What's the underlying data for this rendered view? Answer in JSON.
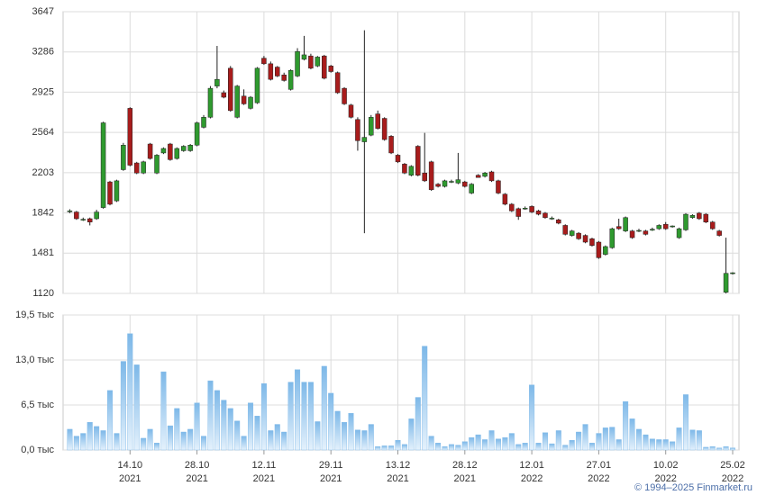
{
  "chart_data": {
    "type": "candlestick",
    "categories": [
      null,
      null,
      null,
      null,
      null,
      null,
      null,
      null,
      null,
      "14.10 2021",
      null,
      null,
      null,
      null,
      null,
      null,
      null,
      null,
      null,
      "28.10 2021",
      null,
      null,
      null,
      null,
      null,
      null,
      null,
      null,
      null,
      "12.11 2021",
      null,
      null,
      null,
      null,
      null,
      null,
      null,
      null,
      null,
      "29.11 2021",
      null,
      null,
      null,
      null,
      null,
      null,
      null,
      null,
      null,
      "13.12 2021",
      null,
      null,
      null,
      null,
      null,
      null,
      null,
      null,
      null,
      "28.12 2021",
      null,
      null,
      null,
      null,
      null,
      null,
      null,
      null,
      null,
      "12.01 2022",
      null,
      null,
      null,
      null,
      null,
      null,
      null,
      null,
      null,
      "27.01 2022",
      null,
      null,
      null,
      null,
      null,
      null,
      null,
      null,
      null,
      "10.02 2022",
      null,
      null,
      null,
      null,
      null,
      null,
      null,
      null,
      null,
      "25.02 2022"
    ],
    "open": [
      1855,
      1850,
      1780,
      1790,
      1790,
      1890,
      2120,
      1950,
      2230,
      2780,
      2290,
      2200,
      2460,
      2200,
      2380,
      2460,
      2330,
      2400,
      2400,
      2450,
      2610,
      2700,
      2980,
      2920,
      3140,
      2700,
      2890,
      2780,
      2830,
      3230,
      3180,
      3150,
      3080,
      2950,
      3070,
      3220,
      3250,
      3160,
      3250,
      3160,
      3100,
      2960,
      2810,
      2680,
      2480,
      2540,
      2730,
      2690,
      2530,
      2360,
      2280,
      2180,
      2440,
      2200,
      2300,
      2100,
      2080,
      2120,
      2110,
      2120,
      2020,
      2180,
      2170,
      2210,
      2130,
      2010,
      1920,
      1880,
      1880,
      1900,
      1860,
      1840,
      1790,
      1780,
      1730,
      1640,
      1660,
      1640,
      1610,
      1580,
      1470,
      1530,
      1720,
      1680,
      1680,
      1680,
      1680,
      1690,
      1700,
      1740,
      1720,
      1620,
      1690,
      1800,
      1840,
      1830,
      1760,
      1680,
      1130,
      1300
    ],
    "high": [
      1875,
      1860,
      1800,
      1800,
      1870,
      2660,
      2130,
      2140,
      2470,
      2790,
      2300,
      2310,
      2470,
      2370,
      2430,
      2470,
      2430,
      2450,
      2460,
      2660,
      2720,
      2980,
      3340,
      2940,
      3160,
      2990,
      2950,
      2890,
      3150,
      3250,
      3200,
      3160,
      3100,
      3130,
      3320,
      3430,
      3270,
      3250,
      3260,
      3170,
      3110,
      2970,
      2820,
      2700,
      3480,
      2720,
      2760,
      2700,
      2540,
      2370,
      2290,
      2270,
      2450,
      2560,
      2310,
      2110,
      2140,
      2140,
      2380,
      2130,
      2110,
      2190,
      2210,
      2220,
      2140,
      2020,
      1930,
      1890,
      1900,
      1910,
      1870,
      1850,
      1810,
      1790,
      1740,
      1690,
      1670,
      1650,
      1620,
      1590,
      1550,
      1710,
      1790,
      1810,
      1690,
      1700,
      1690,
      1710,
      1740,
      1760,
      1730,
      1710,
      1840,
      1830,
      1850,
      1840,
      1770,
      1690,
      1620,
      1310
    ],
    "low": [
      1840,
      1780,
      1770,
      1730,
      1780,
      1880,
      1910,
      1940,
      2220,
      2260,
      2190,
      2190,
      2320,
      2190,
      2370,
      2310,
      2320,
      2390,
      2390,
      2440,
      2600,
      2690,
      2960,
      2870,
      2750,
      2690,
      2810,
      2770,
      2820,
      3170,
      3030,
      3060,
      3020,
      2940,
      3060,
      3210,
      3130,
      3150,
      3040,
      3100,
      2910,
      2810,
      2690,
      2400,
      1660,
      2530,
      2590,
      2490,
      2370,
      2290,
      2190,
      2170,
      2170,
      2120,
      2040,
      2070,
      2070,
      2110,
      2100,
      2070,
      2010,
      2170,
      2160,
      2120,
      2010,
      1910,
      1850,
      1780,
      1870,
      1840,
      1820,
      1790,
      1780,
      1740,
      1640,
      1630,
      1600,
      1570,
      1540,
      1430,
      1460,
      1520,
      1690,
      1670,
      1610,
      1670,
      1640,
      1680,
      1690,
      1690,
      1710,
      1610,
      1680,
      1790,
      1780,
      1750,
      1690,
      1630,
      1120,
      1290
    ],
    "close": [
      1860,
      1790,
      1785,
      1760,
      1850,
      2650,
      1920,
      2130,
      2450,
      2270,
      2200,
      2300,
      2330,
      2360,
      2420,
      2320,
      2420,
      2440,
      2450,
      2650,
      2700,
      2960,
      3040,
      2880,
      2760,
      2980,
      2820,
      2880,
      3140,
      3180,
      3040,
      3070,
      3030,
      3120,
      3290,
      3260,
      3140,
      3240,
      3050,
      3110,
      2920,
      2820,
      2700,
      2490,
      2520,
      2700,
      2600,
      2500,
      2380,
      2300,
      2200,
      2260,
      2180,
      2130,
      2050,
      2080,
      2130,
      2125,
      2140,
      2080,
      2100,
      2160,
      2200,
      2130,
      2020,
      1920,
      1860,
      1810,
      1885,
      1850,
      1830,
      1800,
      1795,
      1750,
      1650,
      1680,
      1610,
      1580,
      1550,
      1440,
      1540,
      1700,
      1700,
      1800,
      1620,
      1685,
      1650,
      1695,
      1730,
      1700,
      1725,
      1700,
      1830,
      1820,
      1790,
      1760,
      1700,
      1640,
      1300,
      1305
    ],
    "ylim": [
      1120,
      3647
    ],
    "yticks": [
      1120,
      1481,
      1842,
      2203,
      2564,
      2925,
      3286,
      3647
    ],
    "up_color": "#2f9a2f",
    "down_color": "#a81c1c",
    "grid": true,
    "volume": {
      "type": "bar",
      "values": [
        3.0,
        2.0,
        2.4,
        4.0,
        3.4,
        2.8,
        8.6,
        2.4,
        12.8,
        16.8,
        12.3,
        1.7,
        3.0,
        1.0,
        11.3,
        3.5,
        6.0,
        2.6,
        3.0,
        6.8,
        2.0,
        10.0,
        8.6,
        7.2,
        6.0,
        4.2,
        2.0,
        6.8,
        4.9,
        9.6,
        2.8,
        3.7,
        2.6,
        9.8,
        11.6,
        9.8,
        9.8,
        4.1,
        12.1,
        8.2,
        5.6,
        4.0,
        5.3,
        2.9,
        2.8,
        3.7,
        0.5,
        0.6,
        0.6,
        1.4,
        0.8,
        4.5,
        7.6,
        15.0,
        2.0,
        1.0,
        0.5,
        0.8,
        0.7,
        1.2,
        1.8,
        2.2,
        1.5,
        2.8,
        1.6,
        1.8,
        2.4,
        0.8,
        1.0,
        9.4,
        1.0,
        2.5,
        0.9,
        2.8,
        0.7,
        1.4,
        2.6,
        3.7,
        1.0,
        2.4,
        3.2,
        3.3,
        1.5,
        7.0,
        4.5,
        3.0,
        2.2,
        1.6,
        1.5,
        1.5,
        1.2,
        3.2,
        8.0,
        2.9,
        2.8,
        0.4,
        0.5,
        0.3,
        0.5,
        0.3
      ],
      "ylim": [
        0,
        19.5
      ],
      "yticks": [
        {
          "value": 0,
          "label": "0,0 тыс"
        },
        {
          "value": 6.5,
          "label": "6,5 тыс"
        },
        {
          "value": 13,
          "label": "13,0 тыс"
        },
        {
          "value": 19.5,
          "label": "19,5 тыс"
        }
      ],
      "color": "#7db8e8"
    },
    "credit": "© 1994–2025 Finmarket.ru"
  }
}
